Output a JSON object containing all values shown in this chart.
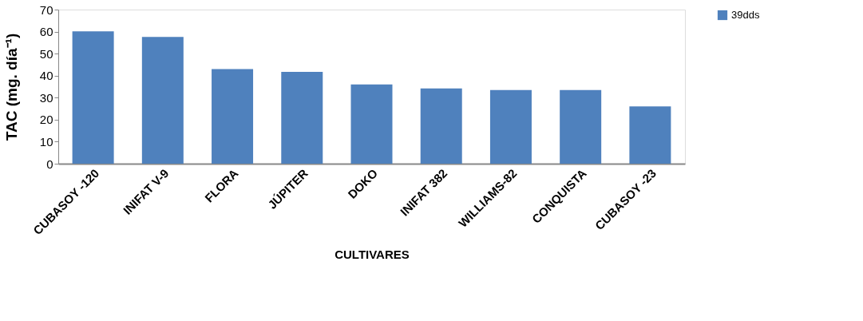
{
  "chart_data": {
    "type": "bar",
    "xlabel": "CULTIVARES",
    "ylabel": "TAC (mg. día⁻¹)",
    "categories": [
      "CUBASOY -120",
      "INIFAT V-9",
      "FLORA",
      "JÚPITER",
      "DOKO",
      "INIFAT 382",
      "WILLIAMS-82",
      "CONQUISTA",
      "CUBASOY -23"
    ],
    "series": [
      {
        "name": "39dds",
        "color": "#4f81bd",
        "values": [
          60.1,
          57.6,
          43.0,
          41.7,
          36.0,
          34.2,
          33.5,
          33.5,
          26.0
        ]
      }
    ],
    "ylim": [
      0,
      70
    ],
    "yticks": [
      0,
      10,
      20,
      30,
      40,
      50,
      60,
      70
    ],
    "grid": false,
    "legend": "right"
  }
}
